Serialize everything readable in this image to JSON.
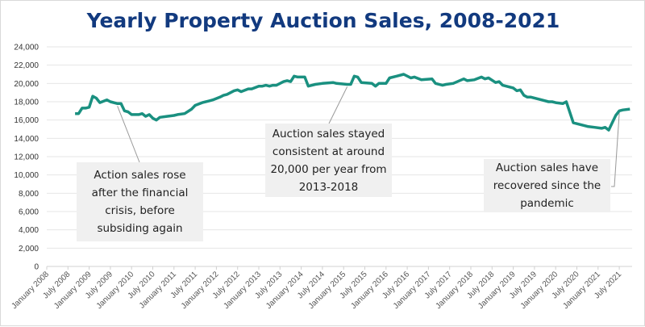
{
  "chart_data": {
    "type": "line",
    "title": "Yearly Property Auction Sales, 2008-2021",
    "xlabel": "",
    "ylabel": "",
    "ylim": [
      0,
      24000
    ],
    "yticks": [
      "0",
      "2,000",
      "4,000",
      "6,000",
      "8,000",
      "10,000",
      "12,000",
      "14,000",
      "16,000",
      "18,000",
      "20,000",
      "22,000",
      "24,000"
    ],
    "xticks": [
      "January 2008",
      "July 2008",
      "January 2009",
      "July 2009",
      "January 2010",
      "July 2010",
      "January 2011",
      "July 2011",
      "January 2012",
      "July 2012",
      "January 2013",
      "July 2013",
      "January 2014",
      "July 2014",
      "January 2015",
      "July 2015",
      "January 2016",
      "July 2016",
      "January 2017",
      "July 2017",
      "January 2018",
      "July 2018",
      "January 2019",
      "July 2019",
      "January 2020",
      "July 2020",
      "January 2021",
      "July 2021"
    ],
    "grid": true,
    "line_color": "#1a9080",
    "series": [
      {
        "points": [
          [
            "2008-09",
            16700
          ],
          [
            "2008-10",
            16700
          ],
          [
            "2008-11",
            17300
          ],
          [
            "2008-12",
            17300
          ],
          [
            "2009-01",
            17400
          ],
          [
            "2009-02",
            18600
          ],
          [
            "2009-03",
            18400
          ],
          [
            "2009-04",
            17900
          ],
          [
            "2009-06",
            18200
          ],
          [
            "2009-07",
            18000
          ],
          [
            "2009-09",
            17800
          ],
          [
            "2009-10",
            17800
          ],
          [
            "2009-11",
            17000
          ],
          [
            "2009-12",
            16900
          ],
          [
            "2010-01",
            16600
          ],
          [
            "2010-03",
            16600
          ],
          [
            "2010-04",
            16700
          ],
          [
            "2010-05",
            16400
          ],
          [
            "2010-06",
            16600
          ],
          [
            "2010-07",
            16200
          ],
          [
            "2010-08",
            16000
          ],
          [
            "2010-09",
            16300
          ],
          [
            "2010-11",
            16400
          ],
          [
            "2011-01",
            16500
          ],
          [
            "2011-02",
            16600
          ],
          [
            "2011-04",
            16700
          ],
          [
            "2011-06",
            17200
          ],
          [
            "2011-07",
            17600
          ],
          [
            "2011-09",
            17900
          ],
          [
            "2011-11",
            18100
          ],
          [
            "2011-12",
            18200
          ],
          [
            "2012-02",
            18500
          ],
          [
            "2012-03",
            18700
          ],
          [
            "2012-04",
            18800
          ],
          [
            "2012-06",
            19200
          ],
          [
            "2012-07",
            19300
          ],
          [
            "2012-08",
            19100
          ],
          [
            "2012-10",
            19400
          ],
          [
            "2012-11",
            19400
          ],
          [
            "2013-01",
            19700
          ],
          [
            "2013-02",
            19700
          ],
          [
            "2013-03",
            19800
          ],
          [
            "2013-04",
            19700
          ],
          [
            "2013-05",
            19800
          ],
          [
            "2013-06",
            19800
          ],
          [
            "2013-08",
            20200
          ],
          [
            "2013-09",
            20300
          ],
          [
            "2013-10",
            20200
          ],
          [
            "2013-11",
            20800
          ],
          [
            "2013-12",
            20700
          ],
          [
            "2014-02",
            20700
          ],
          [
            "2014-03",
            19700
          ],
          [
            "2014-05",
            19900
          ],
          [
            "2014-07",
            20000
          ],
          [
            "2014-10",
            20100
          ],
          [
            "2014-11",
            20000
          ],
          [
            "2015-02",
            19900
          ],
          [
            "2015-03",
            19900
          ],
          [
            "2015-04",
            20800
          ],
          [
            "2015-05",
            20700
          ],
          [
            "2015-06",
            20100
          ],
          [
            "2015-09",
            20000
          ],
          [
            "2015-10",
            19700
          ],
          [
            "2015-11",
            20000
          ],
          [
            "2016-01",
            20000
          ],
          [
            "2016-02",
            20600
          ],
          [
            "2016-04",
            20800
          ],
          [
            "2016-06",
            21000
          ],
          [
            "2016-08",
            20600
          ],
          [
            "2016-09",
            20700
          ],
          [
            "2016-11",
            20400
          ],
          [
            "2017-02",
            20500
          ],
          [
            "2017-03",
            20000
          ],
          [
            "2017-05",
            19800
          ],
          [
            "2017-06",
            19900
          ],
          [
            "2017-08",
            20000
          ],
          [
            "2017-11",
            20500
          ],
          [
            "2017-12",
            20300
          ],
          [
            "2018-02",
            20400
          ],
          [
            "2018-04",
            20700
          ],
          [
            "2018-05",
            20500
          ],
          [
            "2018-06",
            20600
          ],
          [
            "2018-08",
            20100
          ],
          [
            "2018-09",
            20200
          ],
          [
            "2018-10",
            19800
          ],
          [
            "2019-01",
            19500
          ],
          [
            "2019-02",
            19200
          ],
          [
            "2019-03",
            19300
          ],
          [
            "2019-04",
            18700
          ],
          [
            "2019-05",
            18500
          ],
          [
            "2019-06",
            18500
          ],
          [
            "2019-09",
            18200
          ],
          [
            "2019-11",
            18000
          ],
          [
            "2019-12",
            18000
          ],
          [
            "2020-01",
            17900
          ],
          [
            "2020-03",
            17800
          ],
          [
            "2020-04",
            18000
          ],
          [
            "2020-06",
            15700
          ],
          [
            "2020-10",
            15300
          ],
          [
            "2020-12",
            15200
          ],
          [
            "2021-02",
            15100
          ],
          [
            "2021-03",
            15200
          ],
          [
            "2021-04",
            14900
          ],
          [
            "2021-05",
            15700
          ],
          [
            "2021-06",
            16500
          ],
          [
            "2021-07",
            17000
          ],
          [
            "2021-08",
            17100
          ],
          [
            "2021-10",
            17200
          ]
        ]
      }
    ],
    "annotations": [
      {
        "text": "Action sales rose after the financial crisis, before subsiding again",
        "lines": [
          "Action sales rose",
          "after the financial",
          "crisis, before",
          "subsiding again"
        ],
        "points_to": "2009-09"
      },
      {
        "text": "Auction sales stayed consistent at around 20,000 per year from 2013-2018",
        "lines": [
          "Auction sales stayed",
          "consistent at around",
          "20,000 per year from",
          "2013-2018"
        ],
        "points_to": "2015-02"
      },
      {
        "text": "Auction sales have recovered since the pandemic",
        "lines": [
          "Auction sales have",
          "recovered since the",
          "pandemic"
        ],
        "points_to": "2021-07"
      }
    ]
  }
}
